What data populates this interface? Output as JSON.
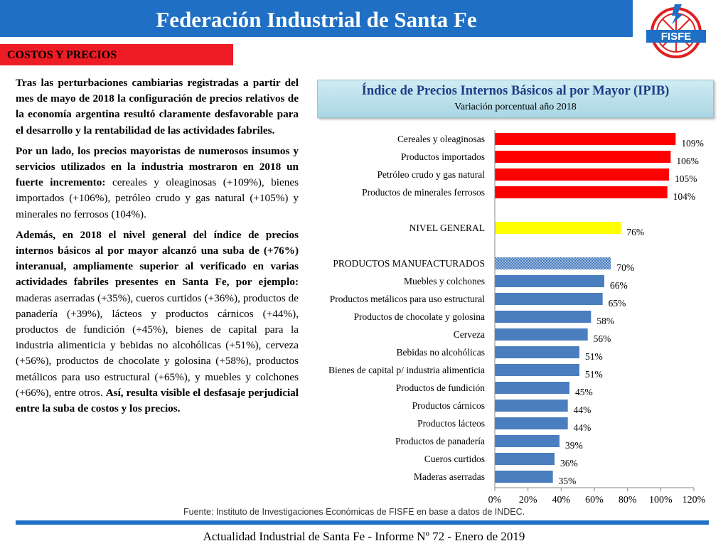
{
  "header": {
    "title": "Federación Industrial de Santa Fe"
  },
  "logo": {
    "text": "FISFE",
    "colors": {
      "red": "#e02020",
      "blue": "#1f6fc5"
    }
  },
  "section": {
    "label": "COSTOS Y PRECIOS"
  },
  "body": {
    "p1": [
      {
        "text": "Tras las perturbaciones cambiarias registradas a partir del mes de mayo de 2018 la configuración de precios relativos de la economía argentina resultó claramente desfavorable para el desarrollo y la rentabilidad de las actividades fabriles.",
        "bold": true
      }
    ],
    "p2": [
      {
        "text": "Por un lado, los precios mayoristas de numerosos insumos y servicios utilizados en la industria mostraron en 2018 un fuerte incremento:",
        "bold": true
      },
      {
        "text": " cereales y oleaginosas (+109%), bienes importados (+106%), petróleo crudo y gas natural (+105%) y minerales no ferrosos (104%).",
        "bold": false
      }
    ],
    "p3": [
      {
        "text": "Además, en 2018 el nivel general del índice de precios internos básicos al por mayor alcanzó una suba de (+76%) interanual, ampliamente superior al verificado en varias actividades fabriles presentes en Santa Fe, por ejemplo:",
        "bold": true
      },
      {
        "text": " maderas aserradas (+35%), cueros curtidos (+36%), productos de panadería (+39%), lácteos y productos cárnicos (+44%), productos de fundición (+45%), bienes de capital para la industria alimenticia y bebidas no alcohólicas (+51%), cerveza (+56%), productos de chocolate y golosina (+58%), productos metálicos para uso estructural (+65%), y muebles y colchones (+66%), entre otros. ",
        "bold": false
      },
      {
        "text": "Así, resulta visible el desfasaje perjudicial entre la suba de costos y los precios.",
        "bold": true
      }
    ]
  },
  "chart_data": {
    "type": "bar",
    "orientation": "horizontal",
    "title": "Índice de Precios Internos Básicos al por Mayor (IPIB)",
    "subtitle": "Variación porcentual año 2018",
    "xlim": [
      0,
      120
    ],
    "xticks": [
      "0%",
      "20%",
      "40%",
      "60%",
      "80%",
      "100%",
      "120%"
    ],
    "grid": false,
    "categories": [
      "Cereales y oleaginosas",
      "Productos importados",
      "Petróleo crudo y gas natural",
      "Productos de minerales ferrosos",
      "",
      "NIVEL GENERAL",
      "",
      "PRODUCTOS MANUFACTURADOS",
      "Muebles y colchones",
      "Productos metálicos para uso estructural",
      "Productos de chocolate y golosina",
      "Cerveza",
      "Bebidas no alcohólicas",
      "Bienes de capital p/ industria alimenticia",
      "Productos de fundición",
      "Productos cárnicos",
      "Productos lácteos",
      "Productos de panadería",
      "Cueros curtidos",
      "Maderas aserradas"
    ],
    "values": [
      109,
      106,
      105,
      104,
      null,
      76,
      null,
      70,
      66,
      65,
      58,
      56,
      51,
      51,
      45,
      44,
      44,
      39,
      36,
      35
    ],
    "labels": [
      "109%",
      "106%",
      "105%",
      "104%",
      "",
      "76%",
      "",
      "70%",
      "66%",
      "65%",
      "58%",
      "56%",
      "51%",
      "51%",
      "45%",
      "44%",
      "44%",
      "39%",
      "36%",
      "35%"
    ],
    "colors": [
      "#ff0000",
      "#ff0000",
      "#ff0000",
      "#ff0000",
      "",
      "#ffff00",
      "",
      "pattern",
      "#4a7ebf",
      "#4a7ebf",
      "#4a7ebf",
      "#4a7ebf",
      "#4a7ebf",
      "#4a7ebf",
      "#4a7ebf",
      "#4a7ebf",
      "#4a7ebf",
      "#4a7ebf",
      "#4a7ebf",
      "#4a7ebf"
    ],
    "pattern_color": "#4a7ebf"
  },
  "source": "Fuente: Instituto de Investigaciones Económicas de FISFE en base a datos de INDEC.",
  "footer": "Actualidad Industrial de Santa Fe - Informe Nº 72 - Enero de 2019"
}
